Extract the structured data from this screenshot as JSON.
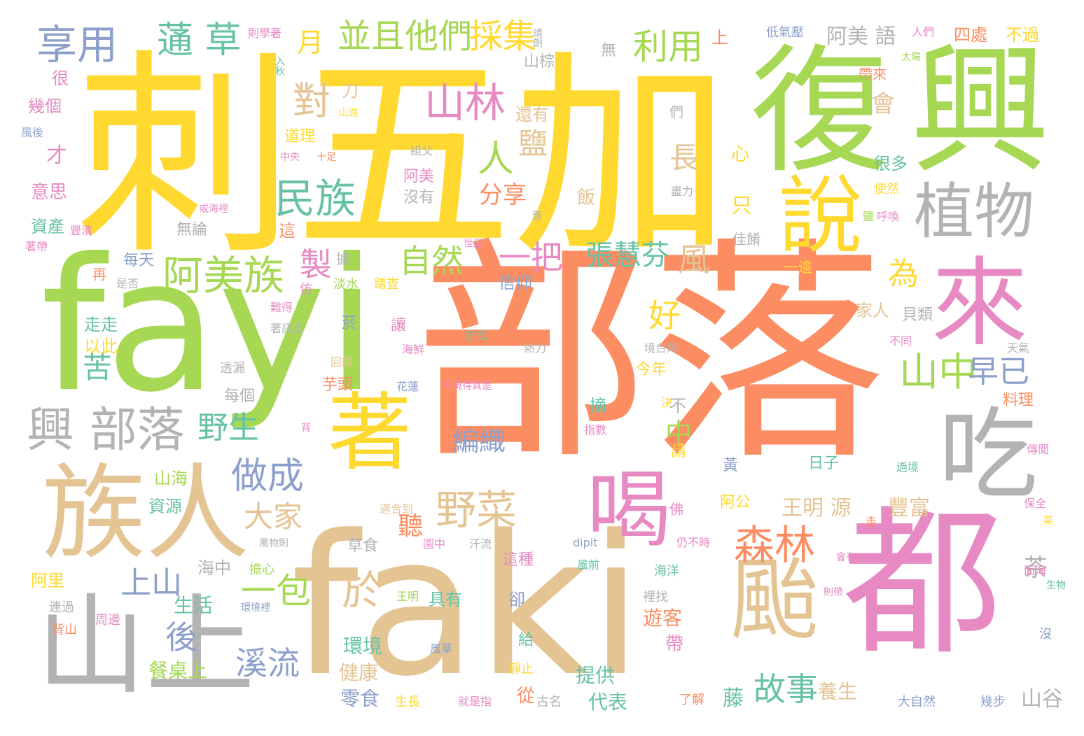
{
  "palette": {
    "orange": "#fc8d62",
    "yellow": "#ffd92f",
    "green": "#a6d854",
    "tan": "#e5c494",
    "pink": "#e78ac3",
    "gray": "#b3b3b3",
    "teal": "#66c2a5",
    "blue": "#8da0cb"
  },
  "words": [
    {
      "text": "部落",
      "color": "orange"
    },
    {
      "text": "刺五加",
      "color": "yellow"
    },
    {
      "text": "faki",
      "color": "tan"
    },
    {
      "text": "fayi",
      "color": "green"
    },
    {
      "text": "興",
      "color": "green"
    },
    {
      "text": "復",
      "color": "green"
    },
    {
      "text": "都",
      "color": "pink"
    },
    {
      "text": "山上",
      "color": "gray"
    },
    {
      "text": "族人",
      "color": "tan"
    },
    {
      "text": "來",
      "color": "pink"
    },
    {
      "text": "吃",
      "color": "gray"
    },
    {
      "text": "著",
      "color": "yellow"
    },
    {
      "text": "颱",
      "color": "tan"
    },
    {
      "text": "說",
      "color": "yellow"
    },
    {
      "text": "喝",
      "color": "pink"
    },
    {
      "text": "植物",
      "color": "gray"
    },
    {
      "text": "興 部落",
      "color": "gray"
    },
    {
      "text": "山林",
      "color": "pink"
    },
    {
      "text": "阿美族",
      "color": "green"
    },
    {
      "text": "民族",
      "color": "teal"
    },
    {
      "text": "野菜",
      "color": "tan"
    },
    {
      "text": "森林",
      "color": "orange"
    },
    {
      "text": "山中",
      "color": "green"
    },
    {
      "text": "享用",
      "color": "blue"
    },
    {
      "text": "蓪 草",
      "color": "teal"
    },
    {
      "text": "並且他們",
      "color": "green"
    },
    {
      "text": "採集",
      "color": "yellow"
    },
    {
      "text": "利用",
      "color": "green"
    },
    {
      "text": "做成",
      "color": "blue"
    },
    {
      "text": "一包",
      "color": "green"
    },
    {
      "text": "溪流",
      "color": "blue"
    },
    {
      "text": "故事",
      "color": "teal"
    },
    {
      "text": "於",
      "color": "tan"
    },
    {
      "text": "對",
      "color": "tan"
    },
    {
      "text": "人",
      "color": "green"
    },
    {
      "text": "一把",
      "color": "pink"
    },
    {
      "text": "自然",
      "color": "green"
    },
    {
      "text": "張慧芬",
      "color": "teal"
    },
    {
      "text": "早已",
      "color": "blue"
    },
    {
      "text": "野生",
      "color": "teal"
    },
    {
      "text": "上山",
      "color": "blue"
    },
    {
      "text": "後",
      "color": "blue"
    },
    {
      "text": "苦",
      "color": "teal"
    },
    {
      "text": "大家",
      "color": "tan"
    },
    {
      "text": "為",
      "color": "yellow"
    },
    {
      "text": "風",
      "color": "tan"
    },
    {
      "text": "製",
      "color": "pink"
    },
    {
      "text": "好",
      "color": "yellow"
    },
    {
      "text": "鹽",
      "color": "tan"
    },
    {
      "text": "長",
      "color": "tan"
    },
    {
      "text": "編織",
      "color": "blue"
    },
    {
      "text": "月",
      "color": "yellow"
    },
    {
      "text": "中",
      "color": "green"
    },
    {
      "text": "分享",
      "color": "orange"
    },
    {
      "text": "聽",
      "color": "orange"
    },
    {
      "text": "王明 源",
      "color": "tan"
    },
    {
      "text": "阿美 語",
      "color": "gray"
    },
    {
      "text": "茶",
      "color": "gray"
    },
    {
      "text": "豐富",
      "color": "tan"
    },
    {
      "text": "山谷",
      "color": "gray"
    },
    {
      "text": "生活",
      "color": "teal"
    },
    {
      "text": "餐桌上",
      "color": "green"
    },
    {
      "text": "零食",
      "color": "blue"
    },
    {
      "text": "代表",
      "color": "teal"
    },
    {
      "text": "提供",
      "color": "teal"
    },
    {
      "text": "健康",
      "color": "tan"
    },
    {
      "text": "環境",
      "color": "teal"
    },
    {
      "text": "遊客",
      "color": "orange"
    },
    {
      "text": "藤",
      "color": "teal"
    },
    {
      "text": "養生",
      "color": "tan"
    },
    {
      "text": "四處",
      "color": "orange"
    },
    {
      "text": "不過",
      "color": "yellow"
    },
    {
      "text": "低氣壓",
      "color": "blue"
    },
    {
      "text": "太陽",
      "color": "green"
    },
    {
      "text": "人們",
      "color": "pink"
    },
    {
      "text": "很",
      "color": "pink"
    },
    {
      "text": "幾個",
      "color": "pink"
    },
    {
      "text": "風後",
      "color": "blue"
    },
    {
      "text": "才",
      "color": "pink"
    },
    {
      "text": "意思",
      "color": "pink"
    },
    {
      "text": "資產",
      "color": "teal"
    },
    {
      "text": "豐濱",
      "color": "pink"
    },
    {
      "text": "著帶",
      "color": "pink"
    },
    {
      "text": "每天",
      "color": "blue"
    },
    {
      "text": "再",
      "color": "orange"
    },
    {
      "text": "是否",
      "color": "gray"
    },
    {
      "text": "走走",
      "color": "teal"
    },
    {
      "text": "以此",
      "color": "yellow"
    },
    {
      "text": "阿里",
      "color": "yellow"
    },
    {
      "text": "連過",
      "color": "gray"
    },
    {
      "text": "背山",
      "color": "orange"
    },
    {
      "text": "周邊",
      "color": "pink"
    },
    {
      "text": "海中",
      "color": "gray"
    },
    {
      "text": "擔心",
      "color": "green"
    },
    {
      "text": "環境裡",
      "color": "blue"
    },
    {
      "text": "王明",
      "color": "green"
    },
    {
      "text": "資源",
      "color": "teal"
    },
    {
      "text": "山海",
      "color": "green"
    },
    {
      "text": "無論",
      "color": "gray"
    },
    {
      "text": "這",
      "color": "orange"
    },
    {
      "text": "阿美",
      "color": "pink"
    },
    {
      "text": "沒有",
      "color": "gray"
    },
    {
      "text": "組父",
      "color": "gray"
    },
    {
      "text": "中央",
      "color": "pink"
    },
    {
      "text": "十足",
      "color": "orange"
    },
    {
      "text": "道理",
      "color": "yellow"
    },
    {
      "text": "山路",
      "color": "yellow"
    },
    {
      "text": "刀",
      "color": "tan"
    },
    {
      "text": "則學著",
      "color": "pink"
    },
    {
      "text": "入秋",
      "color": "teal"
    },
    {
      "text": "晴朗",
      "color": "gray"
    },
    {
      "text": "山棕",
      "color": "gray"
    },
    {
      "text": "無",
      "color": "gray"
    },
    {
      "text": "還有",
      "color": "tan"
    },
    {
      "text": "上",
      "color": "orange"
    },
    {
      "text": "帶來",
      "color": "orange"
    },
    {
      "text": "會",
      "color": "tan"
    },
    {
      "text": "心",
      "color": "yellow"
    },
    {
      "text": "很多",
      "color": "teal"
    },
    {
      "text": "們",
      "color": "gray"
    },
    {
      "text": "使然",
      "color": "yellow"
    },
    {
      "text": "盡力",
      "color": "gray"
    },
    {
      "text": "只",
      "color": "yellow"
    },
    {
      "text": "飯",
      "color": "tan"
    },
    {
      "text": "應",
      "color": "gray"
    },
    {
      "text": "鹽",
      "color": "green"
    },
    {
      "text": "呼喚",
      "color": "pink"
    },
    {
      "text": "佳餚",
      "color": "gray"
    },
    {
      "text": "或海裡",
      "color": "pink"
    },
    {
      "text": "世居",
      "color": "pink"
    },
    {
      "text": "淡水",
      "color": "green"
    },
    {
      "text": "踏查",
      "color": "yellow"
    },
    {
      "text": "仿",
      "color": "pink"
    },
    {
      "text": "據",
      "color": "gray"
    },
    {
      "text": "信仰",
      "color": "blue"
    },
    {
      "text": "一邊",
      "color": "yellow"
    },
    {
      "text": "家人",
      "color": "tan"
    },
    {
      "text": "貝類",
      "color": "gray"
    },
    {
      "text": "難得",
      "color": "pink"
    },
    {
      "text": "著訊息",
      "color": "gray"
    },
    {
      "text": "菸",
      "color": "blue"
    },
    {
      "text": "讓",
      "color": "pink"
    },
    {
      "text": "海鮮",
      "color": "pink"
    },
    {
      "text": "方式",
      "color": "teal"
    },
    {
      "text": "熱力",
      "color": "gray"
    },
    {
      "text": "境台灣",
      "color": "gray"
    },
    {
      "text": "不同",
      "color": "pink"
    },
    {
      "text": "天氣",
      "color": "gray"
    },
    {
      "text": "透漏",
      "color": "gray"
    },
    {
      "text": "回饋",
      "color": "tan"
    },
    {
      "text": "芋頭",
      "color": "orange"
    },
    {
      "text": "花蓮",
      "color": "blue"
    },
    {
      "text": "不曉得真是",
      "color": "pink"
    },
    {
      "text": "今年",
      "color": "yellow"
    },
    {
      "text": "料理",
      "color": "orange"
    },
    {
      "text": "每個",
      "color": "gray"
    },
    {
      "text": "摘",
      "color": "teal"
    },
    {
      "text": "決",
      "color": "yellow"
    },
    {
      "text": "不",
      "color": "gray"
    },
    {
      "text": "指數",
      "color": "pink"
    },
    {
      "text": "背",
      "color": "pink"
    },
    {
      "text": "請",
      "color": "yellow"
    },
    {
      "text": "黃",
      "color": "blue"
    },
    {
      "text": "日子",
      "color": "teal"
    },
    {
      "text": "過境",
      "color": "teal"
    },
    {
      "text": "傳聞",
      "color": "pink"
    },
    {
      "text": "阿公",
      "color": "yellow"
    },
    {
      "text": "佛",
      "color": "pink"
    },
    {
      "text": "適合到",
      "color": "tan"
    },
    {
      "text": "草食",
      "color": "gray"
    },
    {
      "text": "園中",
      "color": "pink"
    },
    {
      "text": "汗流",
      "color": "gray"
    },
    {
      "text": "這種",
      "color": "pink"
    },
    {
      "text": "dipit",
      "color": "blue"
    },
    {
      "text": "仍不時",
      "color": "pink"
    },
    {
      "text": "保全",
      "color": "pink"
    },
    {
      "text": "菜",
      "color": "yellow"
    },
    {
      "text": "走",
      "color": "orange"
    },
    {
      "text": "萬物則",
      "color": "gray"
    },
    {
      "text": "風前",
      "color": "teal"
    },
    {
      "text": "海洋",
      "color": "teal"
    },
    {
      "text": "會有",
      "color": "pink"
    },
    {
      "text": "面海",
      "color": "pink"
    },
    {
      "text": "生物",
      "color": "teal"
    },
    {
      "text": "則帶",
      "color": "pink"
    },
    {
      "text": "卻",
      "color": "blue"
    },
    {
      "text": "具有",
      "color": "teal"
    },
    {
      "text": "裡找",
      "color": "gray"
    },
    {
      "text": "沒",
      "color": "blue"
    },
    {
      "text": "給",
      "color": "teal"
    },
    {
      "text": "帶",
      "color": "pink"
    },
    {
      "text": "風草",
      "color": "blue"
    },
    {
      "text": "靜止",
      "color": "yellow"
    },
    {
      "text": "從",
      "color": "orange"
    },
    {
      "text": "古名",
      "color": "gray"
    },
    {
      "text": "了解",
      "color": "orange"
    },
    {
      "text": "生長",
      "color": "yellow"
    },
    {
      "text": "就是指",
      "color": "pink"
    },
    {
      "text": "大自然",
      "color": "blue"
    },
    {
      "text": "幾步",
      "color": "blue"
    }
  ]
}
